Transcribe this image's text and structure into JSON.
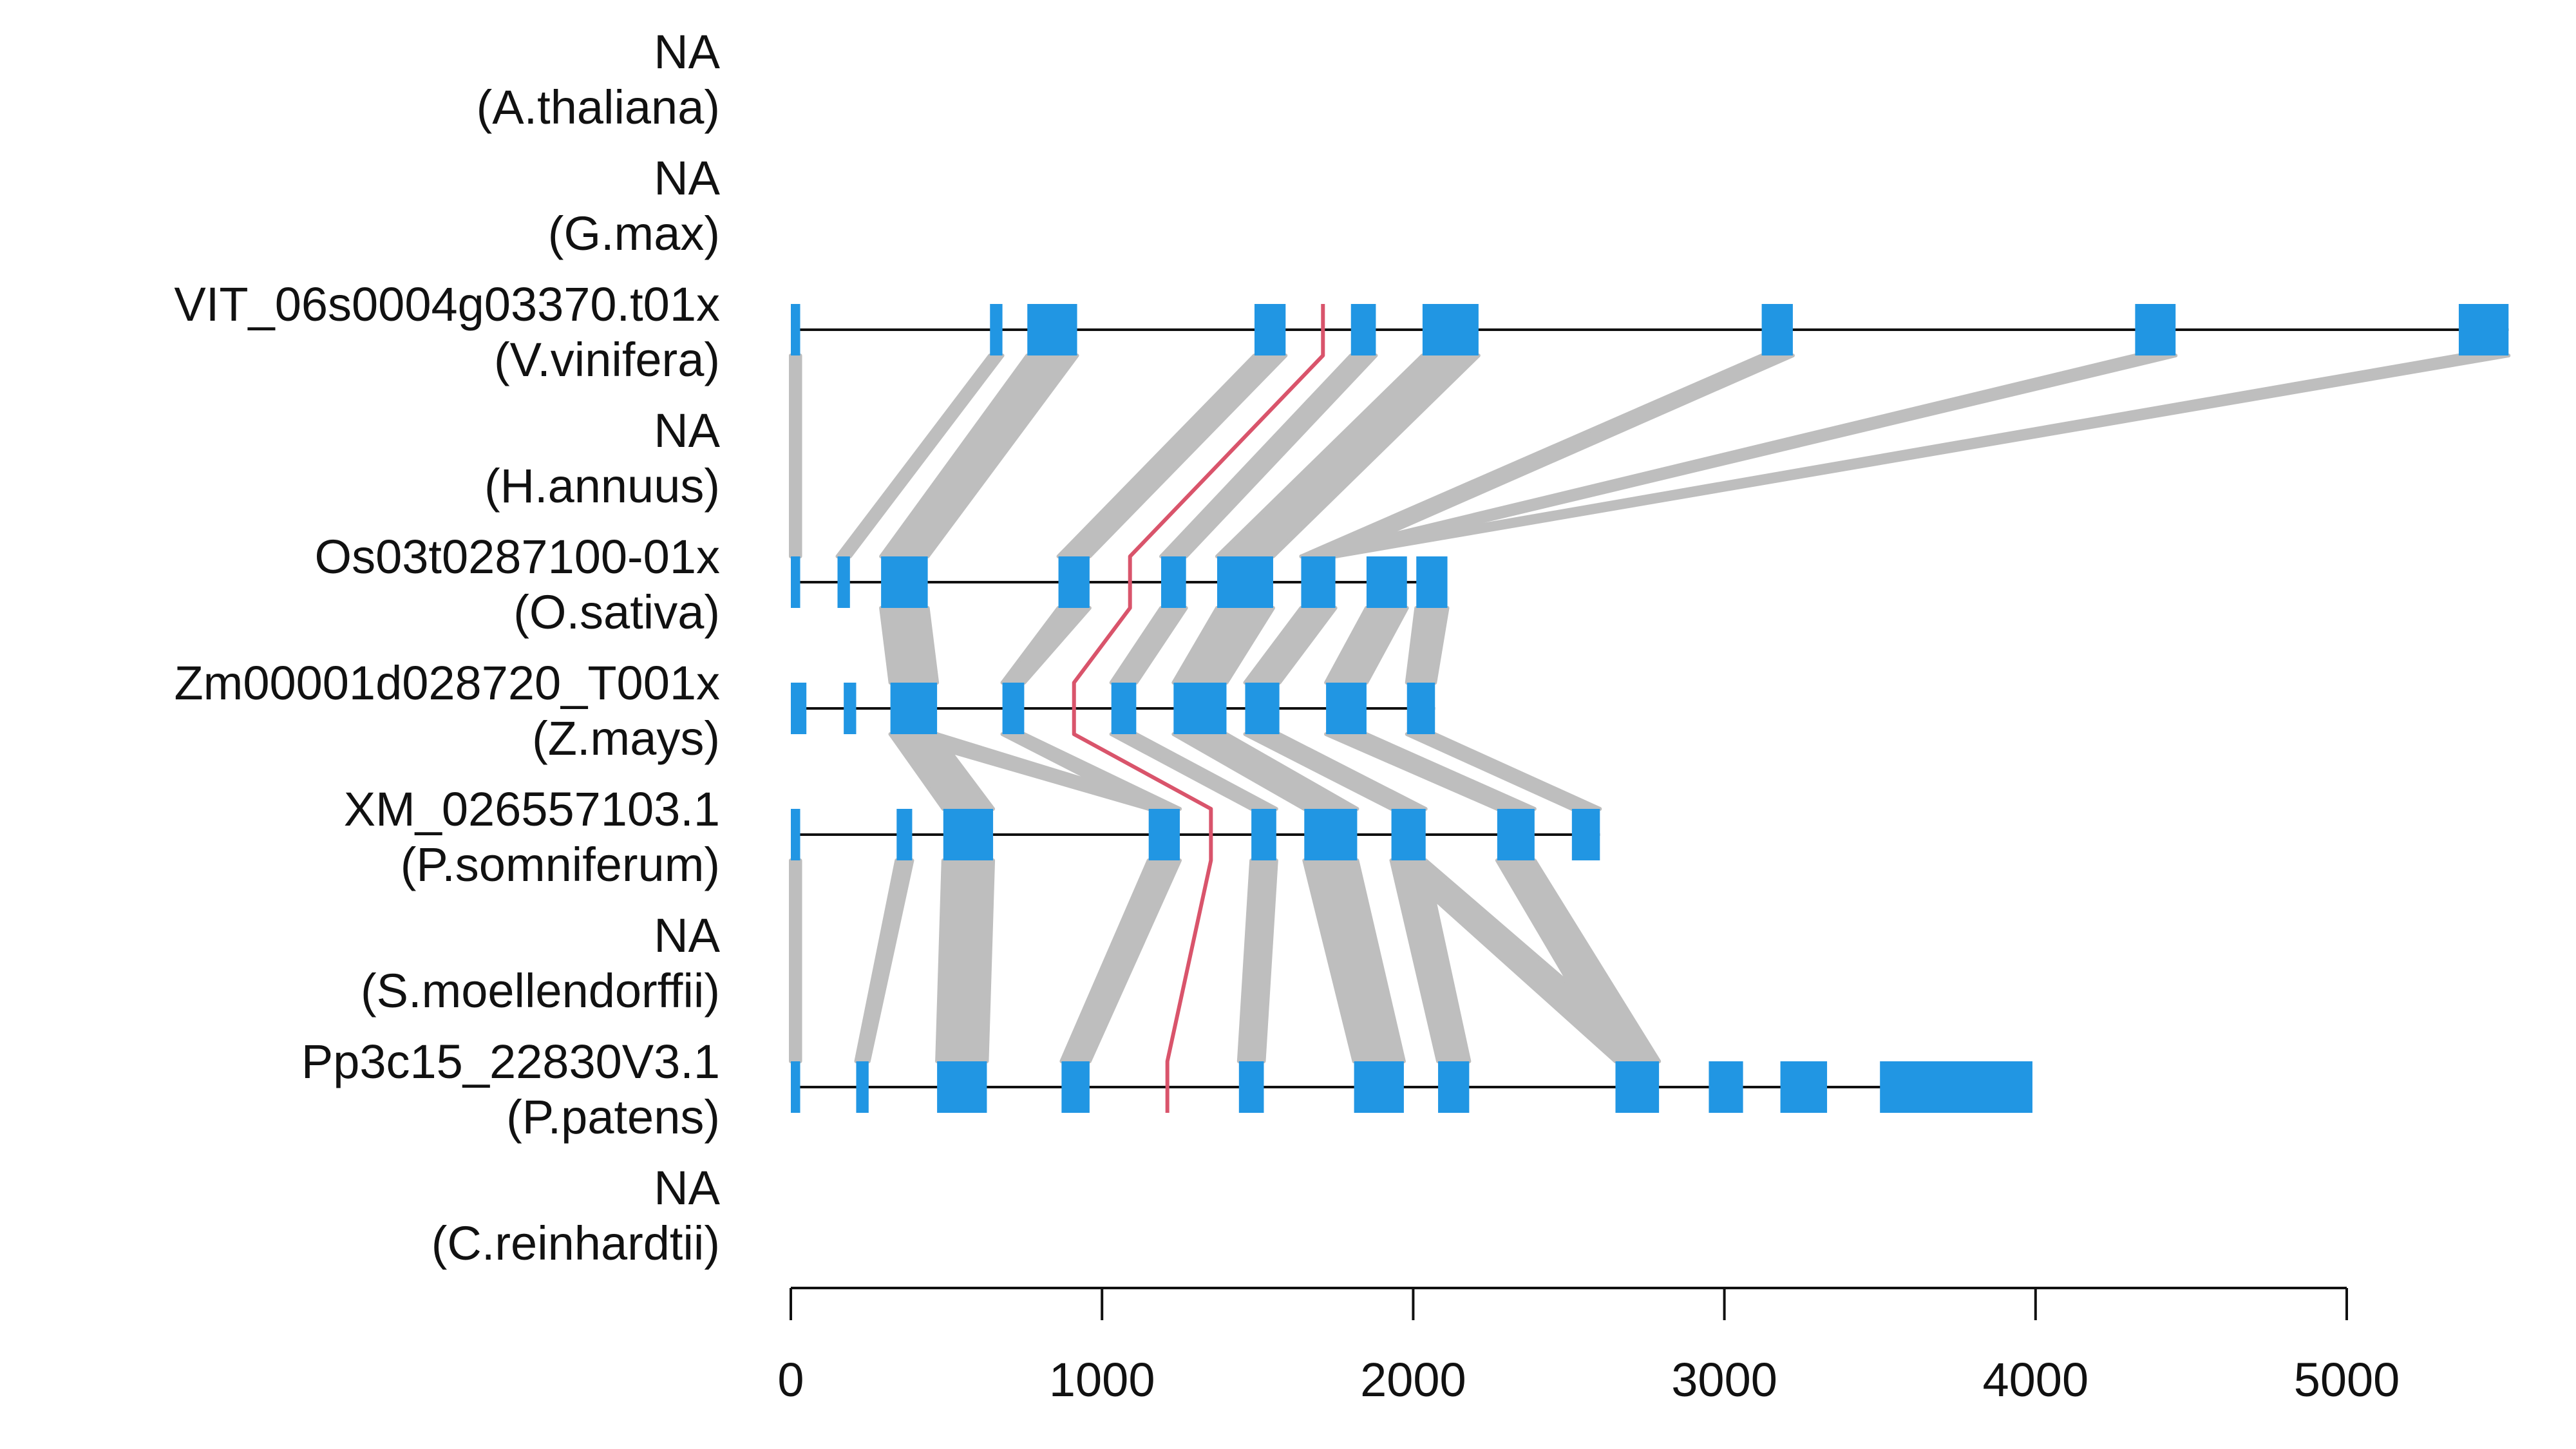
{
  "chart_data": {
    "type": "gene-structure-alignment",
    "x_axis": {
      "ticks": [
        0,
        1000,
        2000,
        3000,
        4000,
        5000
      ],
      "range": [
        0,
        5000
      ]
    },
    "colors": {
      "exon": "#2196e3",
      "link": "#bebebe",
      "highlight": "#d9546b",
      "line": "#111111"
    },
    "tracks": [
      {
        "gene": "NA",
        "species": "(A.thaliana)",
        "length": null,
        "exons": []
      },
      {
        "gene": "NA",
        "species": "(G.max)",
        "length": null,
        "exons": []
      },
      {
        "gene": "VIT_06s0004g03370.t01x",
        "species": "(V.vinifera)",
        "length": 5520,
        "exons": [
          [
            0,
            30
          ],
          [
            640,
            680
          ],
          [
            760,
            920
          ],
          [
            1490,
            1590
          ],
          [
            1800,
            1880
          ],
          [
            2030,
            2210
          ],
          [
            3120,
            3220
          ],
          [
            4320,
            4450
          ],
          [
            5360,
            5520
          ]
        ]
      },
      {
        "gene": "NA",
        "species": "(H.annuus)",
        "length": null,
        "exons": []
      },
      {
        "gene": "Os03t0287100-01x",
        "species": "(O.sativa)",
        "length": 2100,
        "exons": [
          [
            0,
            30
          ],
          [
            150,
            190
          ],
          [
            290,
            440
          ],
          [
            860,
            960
          ],
          [
            1190,
            1270
          ],
          [
            1370,
            1550
          ],
          [
            1640,
            1750
          ],
          [
            1850,
            1980
          ],
          [
            2010,
            2110
          ]
        ]
      },
      {
        "gene": "Zm00001d028720_T001x",
        "species": "(Z.mays)",
        "length": 2070,
        "exons": [
          [
            0,
            50
          ],
          [
            170,
            210
          ],
          [
            320,
            470
          ],
          [
            680,
            750
          ],
          [
            1030,
            1110
          ],
          [
            1230,
            1400
          ],
          [
            1460,
            1570
          ],
          [
            1720,
            1850
          ],
          [
            1980,
            2070
          ]
        ]
      },
      {
        "gene": "XM_026557103.1",
        "species": "(P.somniferum)",
        "length": 2600,
        "exons": [
          [
            0,
            30
          ],
          [
            340,
            390
          ],
          [
            490,
            650
          ],
          [
            1150,
            1250
          ],
          [
            1480,
            1560
          ],
          [
            1650,
            1820
          ],
          [
            1930,
            2040
          ],
          [
            2270,
            2390
          ],
          [
            2510,
            2600
          ]
        ]
      },
      {
        "gene": "NA",
        "species": "(S.moellendorffii)",
        "length": null,
        "exons": []
      },
      {
        "gene": "Pp3c15_22830V3.1",
        "species": "(P.patens)",
        "length": 3980,
        "exons": [
          [
            0,
            30
          ],
          [
            210,
            250
          ],
          [
            470,
            630
          ],
          [
            870,
            960
          ],
          [
            1440,
            1520
          ],
          [
            1810,
            1970
          ],
          [
            2080,
            2180
          ],
          [
            2650,
            2790
          ],
          [
            2950,
            3060
          ],
          [
            3180,
            3330
          ],
          [
            3500,
            3990
          ]
        ]
      },
      {
        "gene": "NA",
        "species": "(C.reinhardtii)",
        "length": null,
        "exons": []
      }
    ],
    "links": [
      {
        "from": 2,
        "to": 4,
        "pairs": [
          [
            [
              0,
              30
            ],
            [
              0,
              30
            ]
          ],
          [
            [
              640,
              680
            ],
            [
              150,
              190
            ]
          ],
          [
            [
              760,
              920
            ],
            [
              290,
              440
            ]
          ],
          [
            [
              1490,
              1590
            ],
            [
              860,
              960
            ]
          ],
          [
            [
              1800,
              1880
            ],
            [
              1190,
              1270
            ]
          ],
          [
            [
              2030,
              2210
            ],
            [
              1370,
              1550
            ]
          ],
          [
            [
              3120,
              3220
            ],
            [
              1640,
              1750
            ]
          ],
          [
            [
              4320,
              4450
            ],
            [
              1640,
              1750
            ]
          ],
          [
            [
              5360,
              5520
            ],
            [
              1640,
              1750
            ]
          ]
        ]
      },
      {
        "from": 4,
        "to": 5,
        "pairs": [
          [
            [
              290,
              440
            ],
            [
              320,
              470
            ]
          ],
          [
            [
              860,
              960
            ],
            [
              680,
              750
            ]
          ],
          [
            [
              1190,
              1270
            ],
            [
              1030,
              1110
            ]
          ],
          [
            [
              1370,
              1550
            ],
            [
              1230,
              1400
            ]
          ],
          [
            [
              1640,
              1750
            ],
            [
              1460,
              1570
            ]
          ],
          [
            [
              1850,
              1980
            ],
            [
              1720,
              1850
            ]
          ],
          [
            [
              2010,
              2110
            ],
            [
              1980,
              2070
            ]
          ]
        ]
      },
      {
        "from": 5,
        "to": 6,
        "pairs": [
          [
            [
              320,
              470
            ],
            [
              490,
              650
            ]
          ],
          [
            [
              320,
              470
            ],
            [
              1150,
              1250
            ]
          ],
          [
            [
              680,
              750
            ],
            [
              1150,
              1250
            ]
          ],
          [
            [
              1030,
              1110
            ],
            [
              1480,
              1560
            ]
          ],
          [
            [
              1230,
              1400
            ],
            [
              1650,
              1820
            ]
          ],
          [
            [
              1460,
              1570
            ],
            [
              1930,
              2040
            ]
          ],
          [
            [
              1720,
              1850
            ],
            [
              2270,
              2390
            ]
          ],
          [
            [
              1980,
              2070
            ],
            [
              2510,
              2600
            ]
          ]
        ]
      },
      {
        "from": 6,
        "to": 8,
        "pairs": [
          [
            [
              0,
              30
            ],
            [
              0,
              30
            ]
          ],
          [
            [
              340,
              390
            ],
            [
              210,
              250
            ]
          ],
          [
            [
              490,
              650
            ],
            [
              470,
              630
            ]
          ],
          [
            [
              1150,
              1250
            ],
            [
              870,
              960
            ]
          ],
          [
            [
              1480,
              1560
            ],
            [
              1440,
              1520
            ]
          ],
          [
            [
              1650,
              1820
            ],
            [
              1810,
              1970
            ]
          ],
          [
            [
              1930,
              2040
            ],
            [
              2080,
              2180
            ]
          ],
          [
            [
              1930,
              2040
            ],
            [
              2650,
              2790
            ]
          ],
          [
            [
              2270,
              2390
            ],
            [
              2650,
              2790
            ]
          ]
        ]
      }
    ],
    "highlight_path": [
      {
        "track": 2,
        "position": 1710
      },
      {
        "track": 4,
        "position": 1090
      },
      {
        "track": 5,
        "position": 910
      },
      {
        "track": 6,
        "position": 1350
      },
      {
        "track": 8,
        "position": 1210
      }
    ]
  }
}
